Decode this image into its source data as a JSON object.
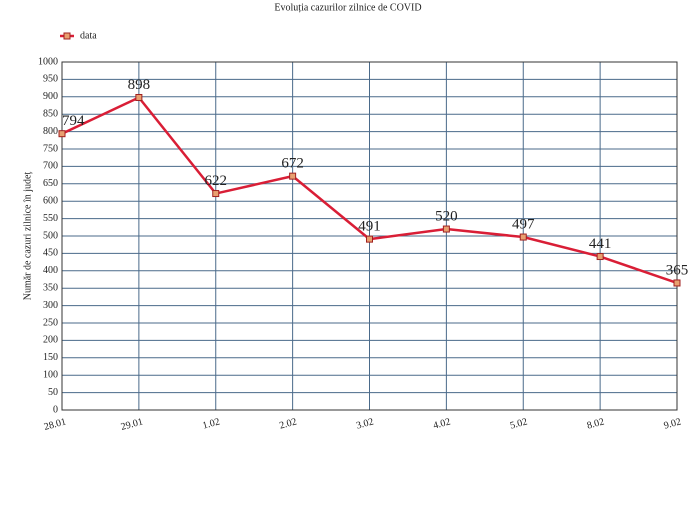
{
  "chart_data": {
    "type": "line",
    "title": "Evoluția cazurilor zilnice de COVID",
    "y_label": "Număr de cazuri zilnice în județ",
    "categories": [
      "28.01",
      "29.01",
      "1.02",
      "2.02",
      "3.02",
      "4.02",
      "5.02",
      "8.02",
      "9.02"
    ],
    "series": [
      {
        "name": "data",
        "color": "#d91e36",
        "values": [
          794,
          898,
          622,
          672,
          491,
          520,
          497,
          441,
          365
        ]
      }
    ],
    "ylim": [
      0,
      1000
    ],
    "yticks": [
      0,
      50,
      100,
      150,
      200,
      250,
      300,
      350,
      400,
      450,
      500,
      550,
      600,
      650,
      700,
      750,
      800,
      850,
      900,
      950,
      1000
    ],
    "grid": true,
    "legend": "upper left"
  }
}
